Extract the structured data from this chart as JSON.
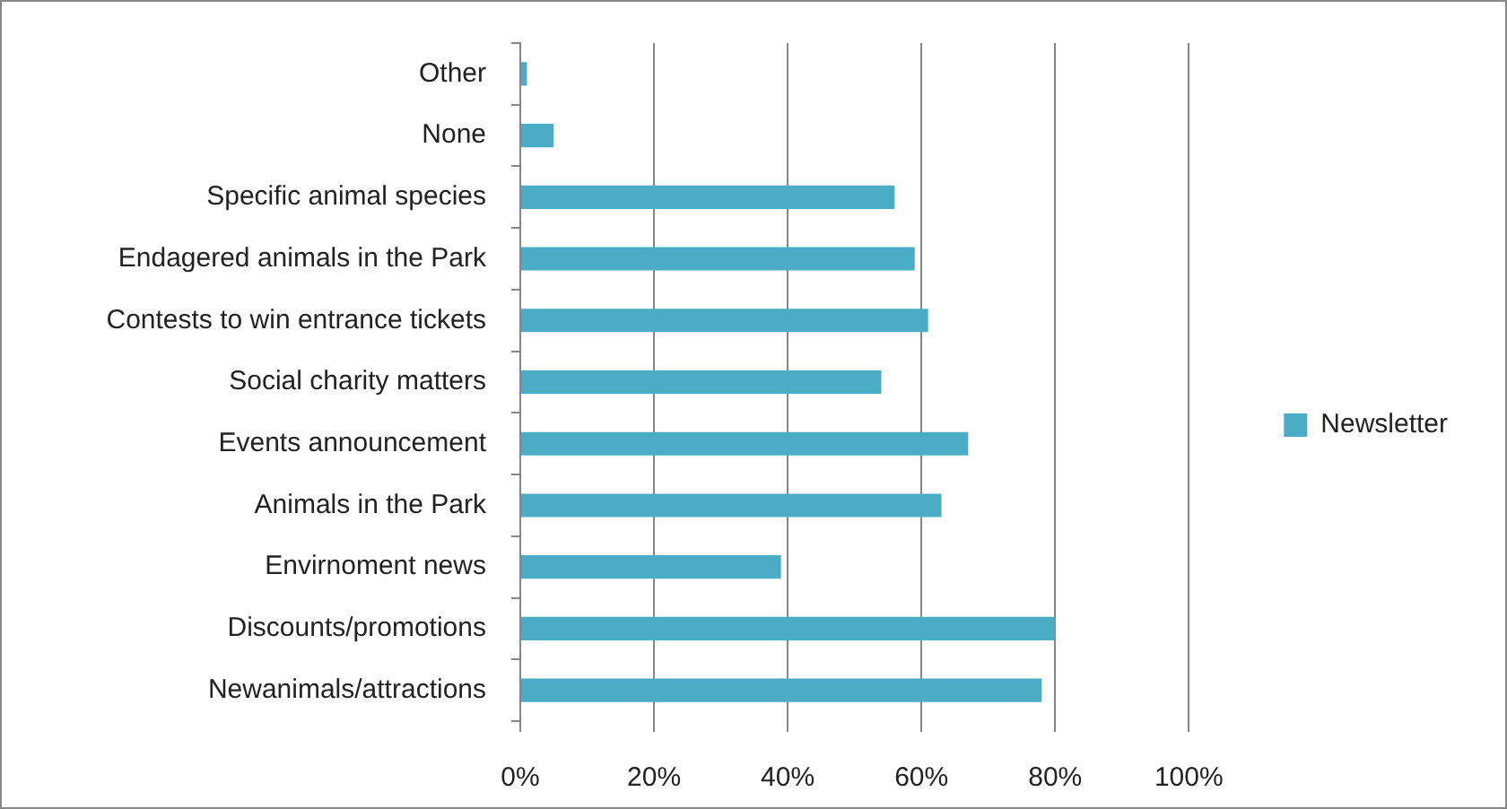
{
  "chart_data": {
    "type": "bar",
    "orientation": "horizontal",
    "categories": [
      "Other",
      "None",
      "Specific animal species",
      "Endagered animals in the Park",
      "Contests to win entrance tickets",
      "Social charity matters",
      "Events announcement",
      "Animals in the Park",
      "Envirnoment news",
      "Discounts/promotions",
      "Newanimals/attractions"
    ],
    "series": [
      {
        "name": "Newsletter",
        "color": "#4bacc6",
        "values": [
          1,
          5,
          56,
          59,
          61,
          54,
          67,
          63,
          39,
          80,
          78
        ]
      }
    ],
    "xlim": [
      0,
      100
    ],
    "xticks": [
      {
        "value": 0,
        "label": "0%"
      },
      {
        "value": 20,
        "label": "20%"
      },
      {
        "value": 40,
        "label": "40%"
      },
      {
        "value": 60,
        "label": "60%"
      },
      {
        "value": 80,
        "label": "80%"
      },
      {
        "value": 100,
        "label": "100%"
      }
    ],
    "grid": "x",
    "legend": "right"
  }
}
